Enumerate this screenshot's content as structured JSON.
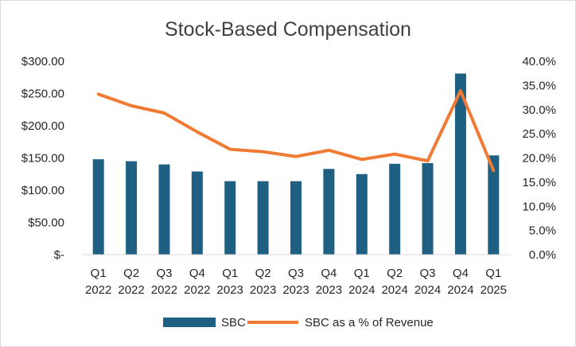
{
  "chart_data": {
    "type": "bar+line",
    "title": "Stock-Based Compensation",
    "categories": [
      [
        "Q1",
        "2022"
      ],
      [
        "Q2",
        "2022"
      ],
      [
        "Q3",
        "2022"
      ],
      [
        "Q4",
        "2022"
      ],
      [
        "Q1",
        "2023"
      ],
      [
        "Q2",
        "2023"
      ],
      [
        "Q3",
        "2023"
      ],
      [
        "Q4",
        "2023"
      ],
      [
        "Q1",
        "2024"
      ],
      [
        "Q2",
        "2024"
      ],
      [
        "Q3",
        "2024"
      ],
      [
        "Q4",
        "2024"
      ],
      [
        "Q1",
        "2025"
      ]
    ],
    "series": [
      {
        "name": "SBC",
        "type": "bar",
        "axis": "left",
        "color": "#1f5f82",
        "values": [
          148,
          145,
          140,
          129,
          114,
          114,
          114,
          133,
          125,
          141,
          142,
          281,
          154
        ]
      },
      {
        "name": "SBC as a % of Revenue",
        "type": "line",
        "axis": "right",
        "color": "#f07b34",
        "values": [
          0.332,
          0.308,
          0.293,
          0.254,
          0.218,
          0.213,
          0.203,
          0.216,
          0.197,
          0.208,
          0.194,
          0.339,
          0.174
        ]
      }
    ],
    "y_left": {
      "min": 0,
      "max": 300,
      "step": 50,
      "tick_labels": [
        "$-",
        "$50.00",
        "$100.00",
        "$150.00",
        "$200.00",
        "$250.00",
        "$300.00"
      ]
    },
    "y_right": {
      "min": 0,
      "max": 0.4,
      "step": 0.05,
      "tick_labels": [
        "0.0%",
        "5.0%",
        "10.0%",
        "15.0%",
        "20.0%",
        "25.0%",
        "30.0%",
        "35.0%",
        "40.0%"
      ]
    },
    "grid": false,
    "legend_position": "bottom"
  }
}
